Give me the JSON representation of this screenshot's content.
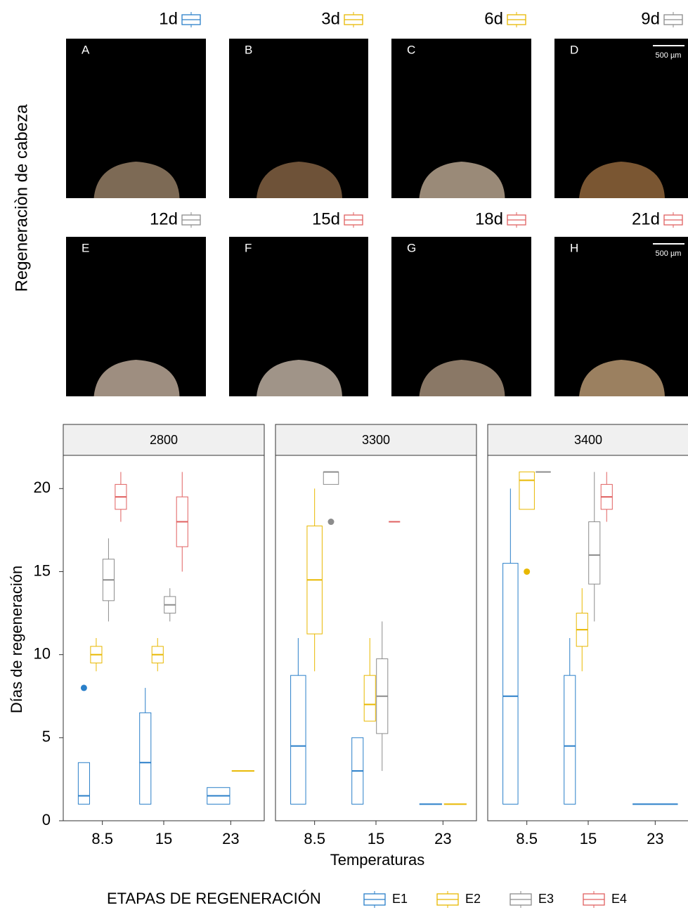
{
  "figure_title": "Regeneraciòn de cabeza",
  "images": [
    {
      "label": "1d",
      "letter": "A",
      "color": "#2a7fc9"
    },
    {
      "label": "3d",
      "letter": "B",
      "color": "#e8b800"
    },
    {
      "label": "6d",
      "letter": "C",
      "color": "#e8b800"
    },
    {
      "label": "9d",
      "letter": "D",
      "color": "#8c8c8c",
      "scale_bar": "500 µm"
    },
    {
      "label": "12d",
      "letter": "E",
      "color": "#8c8c8c"
    },
    {
      "label": "15d",
      "letter": "F",
      "color": "#e06060"
    },
    {
      "label": "18d",
      "letter": "G",
      "color": "#e06060"
    },
    {
      "label": "21d",
      "letter": "H",
      "color": "#e06060",
      "scale_bar": "500 µm"
    }
  ],
  "chart_data": {
    "type": "boxplot",
    "x_label": "Temperaturas",
    "y_label": "Días de regeneración",
    "legend_title": "ETAPAS DE REGENERACIÓN",
    "categories": [
      "8.5",
      "15",
      "23"
    ],
    "ylim": [
      0,
      22
    ],
    "yticks": [
      0,
      5,
      10,
      15,
      20
    ],
    "series": [
      {
        "name": "E1",
        "color": "#2a7fc9"
      },
      {
        "name": "E2",
        "color": "#e8b800"
      },
      {
        "name": "E3",
        "color": "#8c8c8c"
      },
      {
        "name": "E4",
        "color": "#e06060"
      }
    ],
    "facets": [
      {
        "title": "2800",
        "series": [
          {
            "values": [
              {
                "min": 1,
                "q1": 1,
                "median": 1.5,
                "q3": 3.5,
                "max": 3.5,
                "outliers": [
                  8
                ]
              },
              {
                "min": 1,
                "q1": 1,
                "median": 3.5,
                "q3": 6.5,
                "max": 8,
                "outliers": []
              },
              {
                "min": 1,
                "q1": 1,
                "median": 1.5,
                "q3": 2,
                "max": 2,
                "outliers": []
              }
            ]
          },
          {
            "values": [
              {
                "min": 9,
                "q1": 9.5,
                "median": 10,
                "q3": 10.5,
                "max": 11,
                "outliers": []
              },
              {
                "min": 9,
                "q1": 9.5,
                "median": 10,
                "q3": 10.5,
                "max": 11,
                "outliers": []
              },
              {
                "min": 3,
                "q1": 3,
                "median": 3,
                "q3": 3,
                "max": 3,
                "outliers": []
              }
            ]
          },
          {
            "values": [
              {
                "min": 12,
                "q1": 13.25,
                "median": 14.5,
                "q3": 15.75,
                "max": 17,
                "outliers": []
              },
              {
                "min": 12,
                "q1": 12.5,
                "median": 13,
                "q3": 13.5,
                "max": 14,
                "outliers": []
              },
              null
            ]
          },
          {
            "values": [
              {
                "min": 18,
                "q1": 18.75,
                "median": 19.5,
                "q3": 20.25,
                "max": 21,
                "outliers": []
              },
              {
                "min": 15,
                "q1": 16.5,
                "median": 18,
                "q3": 19.5,
                "max": 21,
                "outliers": []
              },
              null
            ]
          }
        ]
      },
      {
        "title": "3300",
        "series": [
          {
            "values": [
              {
                "min": 1,
                "q1": 1,
                "median": 4.5,
                "q3": 8.75,
                "max": 11,
                "outliers": []
              },
              {
                "min": 1,
                "q1": 1,
                "median": 3,
                "q3": 5,
                "max": 5,
                "outliers": []
              },
              {
                "min": 1,
                "q1": 1,
                "median": 1,
                "q3": 1,
                "max": 1,
                "outliers": []
              }
            ]
          },
          {
            "values": [
              {
                "min": 9,
                "q1": 11.25,
                "median": 14.5,
                "q3": 17.75,
                "max": 20,
                "outliers": []
              },
              {
                "min": 6,
                "q1": 6,
                "median": 7,
                "q3": 8.75,
                "max": 11,
                "outliers": []
              },
              {
                "min": 1,
                "q1": 1,
                "median": 1,
                "q3": 1,
                "max": 1,
                "outliers": []
              }
            ]
          },
          {
            "values": [
              {
                "min": 20.25,
                "q1": 20.25,
                "median": 21,
                "q3": 21,
                "max": 21,
                "outliers": [
                  18
                ]
              },
              {
                "min": 3,
                "q1": 5.25,
                "median": 7.5,
                "q3": 9.75,
                "max": 12,
                "outliers": []
              },
              null
            ]
          },
          {
            "values": [
              null,
              {
                "min": 18,
                "q1": 18,
                "median": 18,
                "q3": 18,
                "max": 18,
                "outliers": []
              },
              null
            ]
          }
        ]
      },
      {
        "title": "3400",
        "series": [
          {
            "values": [
              {
                "min": 1,
                "q1": 1,
                "median": 7.5,
                "q3": 15.5,
                "max": 20,
                "outliers": []
              },
              {
                "min": 1,
                "q1": 1,
                "median": 4.5,
                "q3": 8.75,
                "max": 11,
                "outliers": []
              },
              {
                "min": 1,
                "q1": 1,
                "median": 1,
                "q3": 1,
                "max": 1,
                "outliers": []
              }
            ]
          },
          {
            "values": [
              {
                "min": 18.75,
                "q1": 18.75,
                "median": 20.5,
                "q3": 21,
                "max": 21,
                "outliers": [
                  15
                ]
              },
              {
                "min": 9,
                "q1": 10.5,
                "median": 11.5,
                "q3": 12.5,
                "max": 14,
                "outliers": []
              },
              null
            ]
          },
          {
            "values": [
              {
                "min": 21,
                "q1": 21,
                "median": 21,
                "q3": 21,
                "max": 21,
                "outliers": []
              },
              {
                "min": 12,
                "q1": 14.25,
                "median": 16,
                "q3": 18,
                "max": 21,
                "outliers": []
              },
              null
            ]
          },
          {
            "values": [
              null,
              {
                "min": 18,
                "q1": 18.75,
                "median": 19.5,
                "q3": 20.25,
                "max": 21,
                "outliers": []
              },
              null
            ]
          }
        ]
      }
    ]
  }
}
